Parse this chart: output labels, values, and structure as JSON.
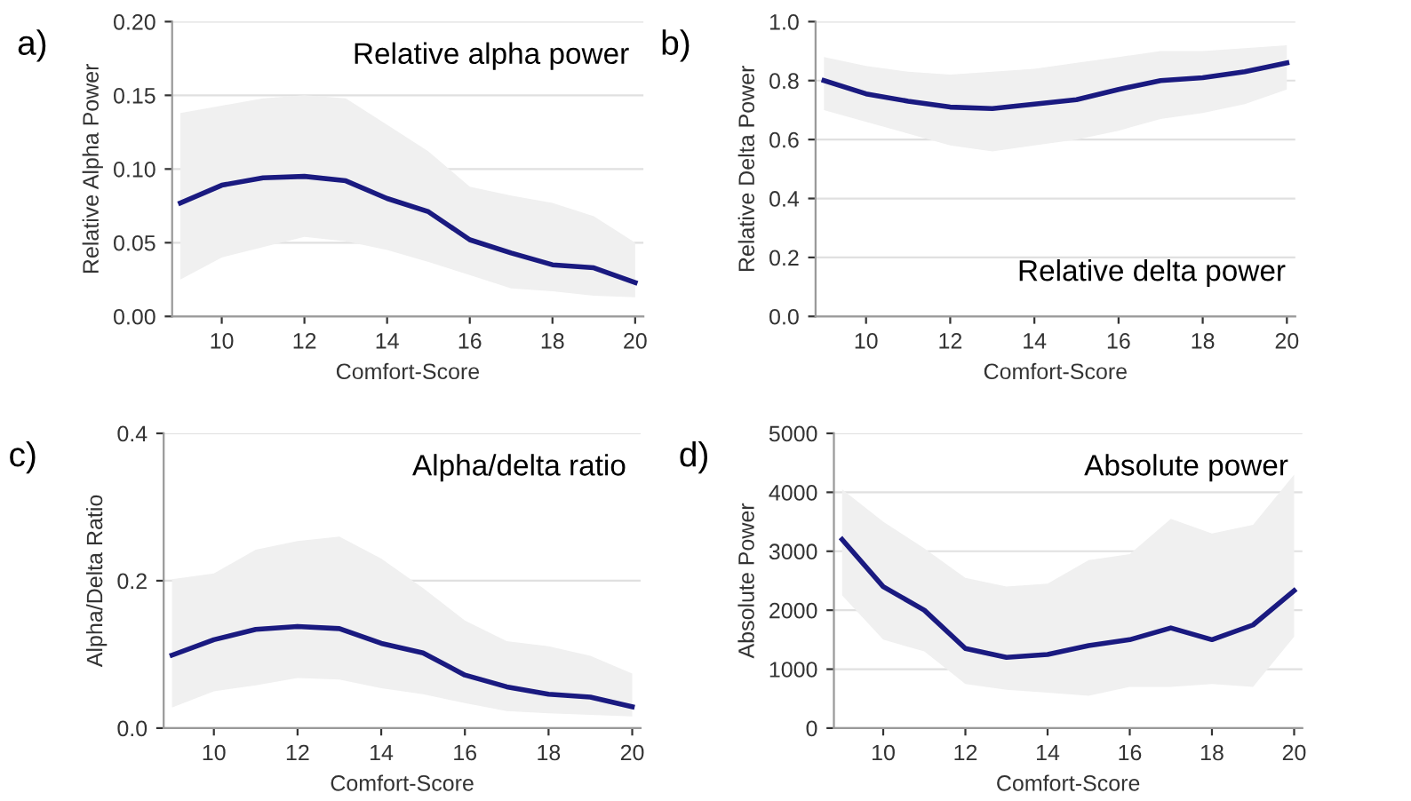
{
  "chart_data": [
    {
      "type": "line",
      "title": "Relative alpha power",
      "xlabel": "Comfort-Score",
      "ylabel": "Relative Alpha Power",
      "annotations": [
        "a)"
      ],
      "x": [
        9,
        10,
        11,
        12,
        13,
        14,
        15,
        16,
        17,
        18,
        19,
        20
      ],
      "xlim": [
        8.8,
        20.2
      ],
      "xticks": [
        10,
        12,
        14,
        16,
        18,
        20
      ],
      "ylim": [
        0,
        0.2
      ],
      "yticks": [
        {
          "value": 0,
          "label": "0.00"
        },
        0.05,
        {
          "value": 0.1,
          "label": "0.10"
        },
        0.15,
        {
          "value": 0.2,
          "label": "0.20"
        }
      ],
      "grid": "y",
      "legend": false,
      "series": [
        {
          "color": "#1a1a80",
          "values": [
            0.077,
            0.089,
            0.094,
            0.095,
            0.092,
            0.08,
            0.071,
            0.052,
            0.043,
            0.035,
            0.033,
            0.023
          ],
          "lower": [
            0.025,
            0.04,
            0.047,
            0.054,
            0.051,
            0.045,
            0.037,
            0.028,
            0.019,
            0.017,
            0.014,
            0.013
          ],
          "upper": [
            0.138,
            0.143,
            0.148,
            0.15,
            0.148,
            0.13,
            0.112,
            0.088,
            0.082,
            0.077,
            0.068,
            0.05
          ]
        }
      ]
    },
    {
      "type": "line",
      "title": "Relative delta power",
      "xlabel": "Comfort-Score",
      "ylabel": "Relative Delta Power",
      "annotations": [
        "b)"
      ],
      "x": [
        9,
        10,
        11,
        12,
        13,
        14,
        15,
        16,
        17,
        18,
        19,
        20
      ],
      "xlim": [
        8.8,
        20.2
      ],
      "xticks": [
        10,
        12,
        14,
        16,
        18,
        20
      ],
      "ylim": [
        0,
        1
      ],
      "yticks": [
        {
          "value": 0,
          "label": "0.0"
        },
        0.2,
        0.4,
        0.6,
        0.8,
        {
          "value": 1,
          "label": "1.0"
        }
      ],
      "grid": "y",
      "legend": false,
      "series": [
        {
          "color": "#1a1a80",
          "values": [
            0.8,
            0.755,
            0.73,
            0.71,
            0.705,
            0.72,
            0.735,
            0.77,
            0.8,
            0.81,
            0.83,
            0.86
          ],
          "lower": [
            0.7,
            0.66,
            0.62,
            0.58,
            0.56,
            0.58,
            0.6,
            0.63,
            0.67,
            0.69,
            0.72,
            0.77
          ],
          "upper": [
            0.88,
            0.85,
            0.83,
            0.82,
            0.83,
            0.84,
            0.86,
            0.88,
            0.9,
            0.9,
            0.91,
            0.92
          ]
        }
      ]
    },
    {
      "type": "line",
      "title": "Alpha/delta ratio",
      "xlabel": "Comfort-Score",
      "ylabel": "Alpha/Delta Ratio",
      "annotations": [
        "c)"
      ],
      "x": [
        9,
        10,
        11,
        12,
        13,
        14,
        15,
        16,
        17,
        18,
        19,
        20
      ],
      "xlim": [
        8.8,
        20.2
      ],
      "xticks": [
        10,
        12,
        14,
        16,
        18,
        20
      ],
      "ylim": [
        0,
        0.4
      ],
      "yticks": [
        {
          "value": 0,
          "label": "0.0"
        },
        0.2,
        0.4
      ],
      "grid": "y",
      "legend": false,
      "series": [
        {
          "color": "#1a1a80",
          "values": [
            0.099,
            0.12,
            0.134,
            0.138,
            0.135,
            0.115,
            0.102,
            0.072,
            0.056,
            0.046,
            0.042,
            0.029
          ],
          "lower": [
            0.028,
            0.05,
            0.058,
            0.068,
            0.066,
            0.054,
            0.046,
            0.034,
            0.023,
            0.02,
            0.018,
            0.016
          ],
          "upper": [
            0.202,
            0.21,
            0.242,
            0.254,
            0.26,
            0.23,
            0.19,
            0.146,
            0.118,
            0.111,
            0.098,
            0.074
          ]
        }
      ]
    },
    {
      "type": "line",
      "title": "Absolute power",
      "xlabel": "Comfort-Score",
      "ylabel": "Absolute Power",
      "annotations": [
        "d)"
      ],
      "x": [
        9,
        10,
        11,
        12,
        13,
        14,
        15,
        16,
        17,
        18,
        19,
        20
      ],
      "xlim": [
        8.8,
        20.2
      ],
      "xticks": [
        10,
        12,
        14,
        16,
        18,
        20
      ],
      "ylim": [
        0,
        5000
      ],
      "yticks": [
        0,
        1000,
        2000,
        3000,
        4000,
        5000
      ],
      "grid": "y",
      "legend": false,
      "series": [
        {
          "color": "#1a1a80",
          "values": [
            3200,
            2400,
            2000,
            1350,
            1200,
            1250,
            1400,
            1500,
            1700,
            1500,
            1750,
            2330
          ],
          "lower": [
            2250,
            1500,
            1300,
            750,
            650,
            600,
            550,
            700,
            700,
            750,
            700,
            1550
          ],
          "upper": [
            4050,
            3500,
            3050,
            2550,
            2400,
            2450,
            2850,
            2950,
            3550,
            3300,
            3450,
            4300
          ]
        }
      ]
    }
  ]
}
